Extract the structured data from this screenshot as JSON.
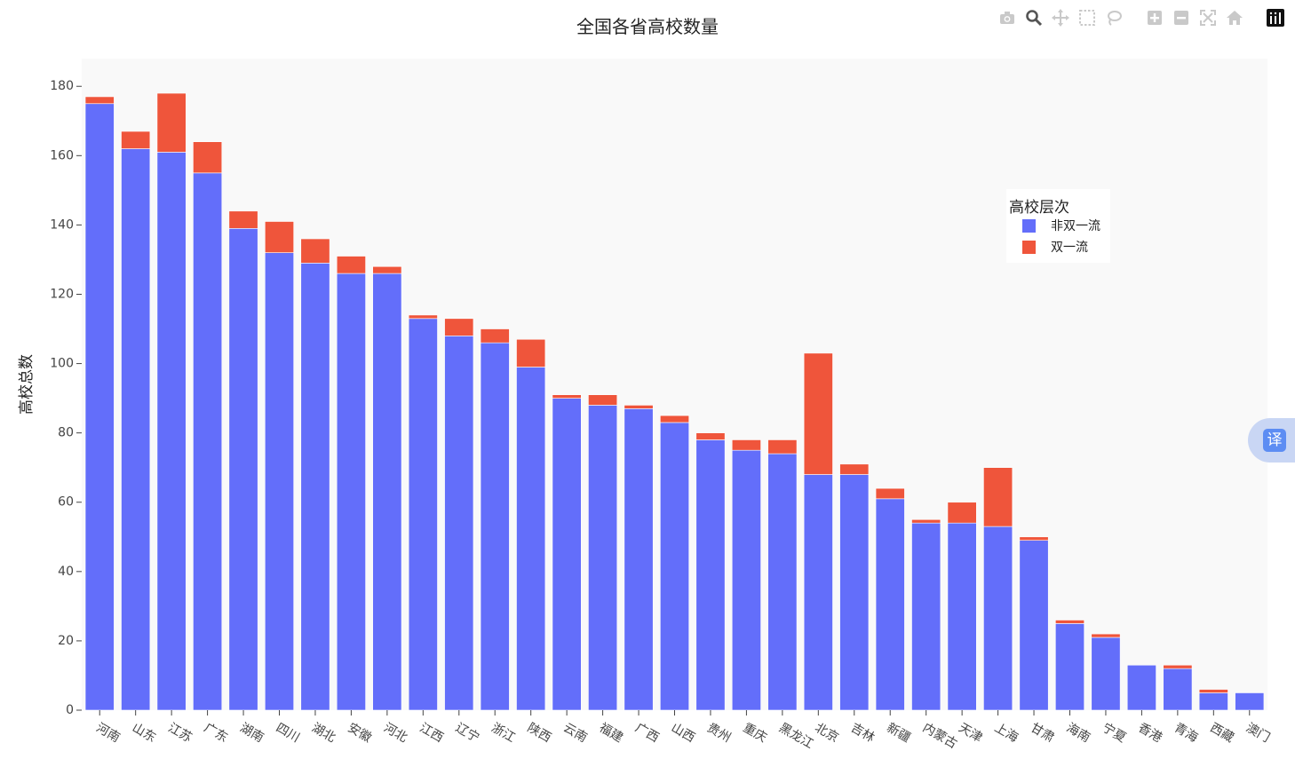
{
  "chart_data": {
    "type": "bar",
    "barmode": "stack",
    "title": "全国各省高校数量",
    "xlabel": "",
    "ylabel": "高校总数",
    "ylim": [
      0,
      188
    ],
    "yticks": [
      0,
      20,
      40,
      60,
      80,
      100,
      120,
      140,
      160,
      180
    ],
    "categories": [
      "河南",
      "山东",
      "江苏",
      "广东",
      "湖南",
      "四川",
      "湖北",
      "安徽",
      "河北",
      "江西",
      "辽宁",
      "浙江",
      "陕西",
      "云南",
      "福建",
      "广西",
      "山西",
      "贵州",
      "重庆",
      "黑龙江",
      "北京",
      "吉林",
      "新疆",
      "内蒙古",
      "天津",
      "上海",
      "甘肃",
      "海南",
      "宁夏",
      "香港",
      "青海",
      "西藏",
      "澳门"
    ],
    "series": [
      {
        "name": "非双一流",
        "color": "#636efa",
        "values": [
          175,
          162,
          161,
          155,
          139,
          132,
          129,
          126,
          126,
          113,
          108,
          106,
          99,
          90,
          88,
          87,
          83,
          78,
          75,
          74,
          68,
          68,
          61,
          54,
          54,
          53,
          49,
          25,
          21,
          13,
          12,
          5,
          5
        ]
      },
      {
        "name": "双一流",
        "color": "#ef553b",
        "values": [
          2,
          5,
          17,
          9,
          5,
          9,
          7,
          5,
          2,
          1,
          5,
          4,
          8,
          1,
          3,
          1,
          2,
          2,
          3,
          4,
          35,
          3,
          3,
          1,
          6,
          17,
          1,
          1,
          1,
          0,
          1,
          1,
          0
        ]
      }
    ],
    "legend": {
      "title": "高校层次",
      "placement": "right"
    },
    "grid": false,
    "plot_background": "#f9f9f9"
  },
  "modebar": {
    "icons": [
      "camera-icon",
      "zoom-icon",
      "pan-icon",
      "box-select-icon",
      "lasso-select-icon",
      "zoom-in-icon",
      "zoom-out-icon",
      "autoscale-icon",
      "reset-axes-icon",
      "plotly-logo-icon"
    ]
  },
  "translate_button": {
    "label": "译"
  }
}
